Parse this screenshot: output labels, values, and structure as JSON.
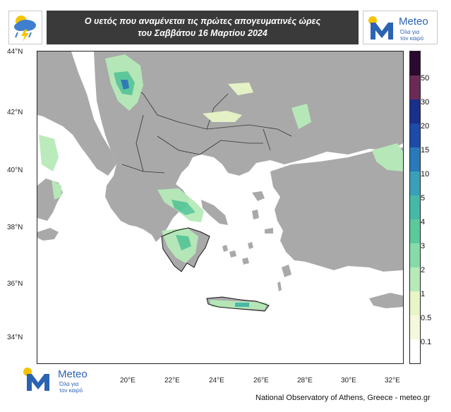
{
  "header": {
    "title_line1": "Ο υετός που αναμένεται τις πρώτες απογευματινές ώρες",
    "title_line2": "του Σαββάτου 16 Μαρτίου 2024"
  },
  "brand": {
    "name": "Meteo",
    "slogan_line1": "Όλα για",
    "slogan_line2": "τον καιρό",
    "accent_color": "#2b63b3",
    "sun_color": "#f5c400"
  },
  "map": {
    "lat_labels": [
      "44°N",
      "42°N",
      "40°N",
      "38°N",
      "36°N",
      "34°N"
    ],
    "lon_labels": [
      "20°E",
      "22°E",
      "24°E",
      "26°E",
      "28°E",
      "30°E",
      "32°E"
    ],
    "land_color": "#a9a9a9",
    "sea_color": "#ffffff"
  },
  "legend": {
    "labels": [
      "50",
      "30",
      "20",
      "15",
      "10",
      "5",
      "4",
      "3",
      "2",
      "1",
      "0.5",
      "0.1"
    ],
    "colors": [
      "#2a0a2e",
      "#6b2a55",
      "#1a2f8a",
      "#1e4aa8",
      "#2a79b8",
      "#3aa0b8",
      "#46b9a6",
      "#5bc99a",
      "#86dca8",
      "#b6eab8",
      "#e7f5c7",
      "#f6f8dd",
      "#ffffff"
    ]
  },
  "footer": {
    "credit": "National Observatory of Athens, Greece - meteo.gr"
  }
}
